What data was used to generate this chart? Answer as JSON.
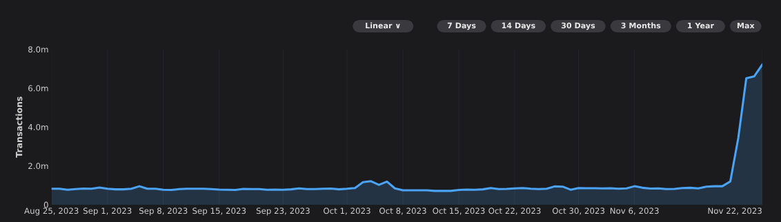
{
  "chart_data": {
    "type": "area",
    "ylabel": "Transactions",
    "x": [
      "2023-08-25",
      "2023-08-26",
      "2023-08-27",
      "2023-08-28",
      "2023-08-29",
      "2023-08-30",
      "2023-08-31",
      "2023-09-01",
      "2023-09-02",
      "2023-09-03",
      "2023-09-04",
      "2023-09-05",
      "2023-09-06",
      "2023-09-07",
      "2023-09-08",
      "2023-09-09",
      "2023-09-10",
      "2023-09-11",
      "2023-09-12",
      "2023-09-13",
      "2023-09-14",
      "2023-09-15",
      "2023-09-16",
      "2023-09-17",
      "2023-09-18",
      "2023-09-19",
      "2023-09-20",
      "2023-09-21",
      "2023-09-22",
      "2023-09-23",
      "2023-09-24",
      "2023-09-25",
      "2023-09-26",
      "2023-09-27",
      "2023-09-28",
      "2023-09-29",
      "2023-09-30",
      "2023-10-01",
      "2023-10-02",
      "2023-10-03",
      "2023-10-04",
      "2023-10-05",
      "2023-10-06",
      "2023-10-07",
      "2023-10-08",
      "2023-10-09",
      "2023-10-10",
      "2023-10-11",
      "2023-10-12",
      "2023-10-13",
      "2023-10-14",
      "2023-10-15",
      "2023-10-16",
      "2023-10-17",
      "2023-10-18",
      "2023-10-19",
      "2023-10-20",
      "2023-10-21",
      "2023-10-22",
      "2023-10-23",
      "2023-10-24",
      "2023-10-25",
      "2023-10-26",
      "2023-10-27",
      "2023-10-28",
      "2023-10-29",
      "2023-10-30",
      "2023-10-31",
      "2023-11-01",
      "2023-11-02",
      "2023-11-03",
      "2023-11-04",
      "2023-11-05",
      "2023-11-06",
      "2023-11-07",
      "2023-11-08",
      "2023-11-09",
      "2023-11-10",
      "2023-11-11",
      "2023-11-12",
      "2023-11-13",
      "2023-11-14",
      "2023-11-15",
      "2023-11-16",
      "2023-11-17",
      "2023-11-18",
      "2023-11-19",
      "2023-11-20",
      "2023-11-21",
      "2023-11-22"
    ],
    "series": [
      {
        "color": "#4ba3f5",
        "values": [
          0.82,
          0.82,
          0.77,
          0.8,
          0.83,
          0.82,
          0.88,
          0.82,
          0.79,
          0.79,
          0.82,
          0.95,
          0.82,
          0.82,
          0.77,
          0.76,
          0.8,
          0.82,
          0.82,
          0.82,
          0.8,
          0.78,
          0.77,
          0.76,
          0.81,
          0.8,
          0.8,
          0.77,
          0.78,
          0.77,
          0.79,
          0.84,
          0.8,
          0.8,
          0.82,
          0.83,
          0.79,
          0.82,
          0.86,
          1.16,
          1.21,
          1.02,
          1.19,
          0.84,
          0.74,
          0.74,
          0.74,
          0.74,
          0.71,
          0.71,
          0.71,
          0.76,
          0.78,
          0.77,
          0.79,
          0.86,
          0.8,
          0.81,
          0.84,
          0.86,
          0.82,
          0.8,
          0.82,
          0.94,
          0.93,
          0.77,
          0.86,
          0.85,
          0.85,
          0.84,
          0.85,
          0.82,
          0.84,
          0.95,
          0.87,
          0.83,
          0.84,
          0.8,
          0.81,
          0.86,
          0.87,
          0.84,
          0.93,
          0.95,
          0.95,
          1.2,
          3.44,
          6.51,
          6.61,
          7.21
        ]
      }
    ],
    "xlim": [
      "2023-08-25",
      "2023-11-22"
    ],
    "xticks": [
      {
        "value": "2023-08-25",
        "label": "Aug 25, 2023"
      },
      {
        "value": "2023-09-01",
        "label": "Sep 1, 2023"
      },
      {
        "value": "2023-09-08",
        "label": "Sep 8, 2023"
      },
      {
        "value": "2023-09-15",
        "label": "Sep 15, 2023"
      },
      {
        "value": "2023-09-23",
        "label": "Sep 23, 2023"
      },
      {
        "value": "2023-10-01",
        "label": "Oct 1, 2023"
      },
      {
        "value": "2023-10-08",
        "label": "Oct 8, 2023"
      },
      {
        "value": "2023-10-15",
        "label": "Oct 15, 2023"
      },
      {
        "value": "2023-10-22",
        "label": "Oct 22, 2023"
      },
      {
        "value": "2023-10-30",
        "label": "Oct 30, 2023"
      },
      {
        "value": "2023-11-06",
        "label": "Nov 6, 2023"
      },
      {
        "value": "2023-11-22",
        "label": "Nov 22, 2023"
      }
    ],
    "ylim": [
      0,
      8
    ],
    "yticks": [
      0,
      {
        "value": 2,
        "label": "2.0m"
      },
      {
        "value": 4,
        "label": "4.0m"
      },
      {
        "value": 6,
        "label": "6.0m"
      },
      {
        "value": 8,
        "label": "8.0m"
      }
    ],
    "grid": "x",
    "annotations": [
      "Linear ∨",
      "7 Days",
      "14 Days",
      "30 Days",
      "3 Months",
      "1 Year",
      "Max"
    ]
  }
}
